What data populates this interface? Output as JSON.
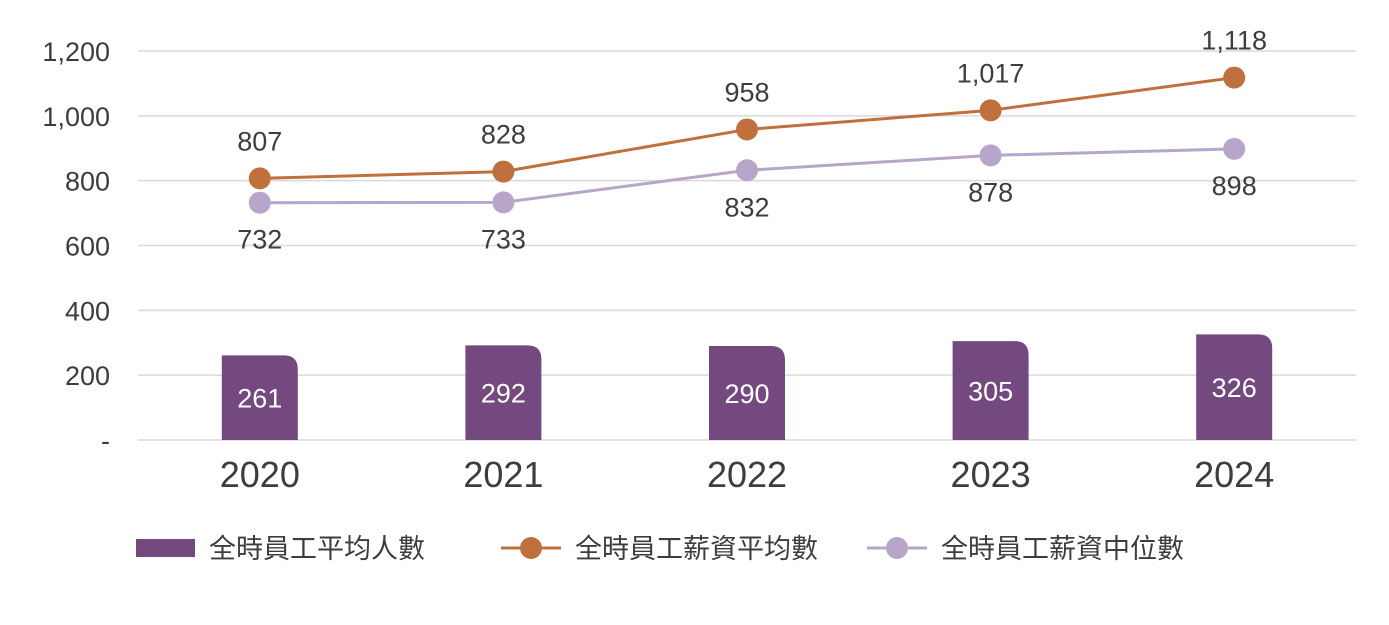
{
  "chart_data": {
    "type": "bar+line",
    "categories": [
      "2020",
      "2021",
      "2022",
      "2023",
      "2024"
    ],
    "ylim": [
      0,
      1200
    ],
    "yticks": [
      {
        "value": 0,
        "label": "-"
      },
      {
        "value": 200,
        "label": "200"
      },
      {
        "value": 400,
        "label": "400"
      },
      {
        "value": 600,
        "label": "600"
      },
      {
        "value": 800,
        "label": "800"
      },
      {
        "value": 1000,
        "label": "1,000"
      },
      {
        "value": 1200,
        "label": "1,200"
      }
    ],
    "grid": true,
    "legend_position": "bottom",
    "series": [
      {
        "name": "全時員工平均人數",
        "kind": "bar",
        "color": "#73497f",
        "values": [
          261,
          292,
          290,
          305,
          326
        ],
        "labels": [
          "261",
          "292",
          "290",
          "305",
          "326"
        ]
      },
      {
        "name": "全時員工薪資平均數",
        "kind": "line",
        "color": "#c0703d",
        "values": [
          807,
          828,
          958,
          1017,
          1118
        ],
        "labels": [
          "807",
          "828",
          "958",
          "1,017",
          "1,118"
        ]
      },
      {
        "name": "全時員工薪資中位數",
        "kind": "line",
        "color": "#b7a6c9",
        "values": [
          732,
          733,
          832,
          878,
          898
        ],
        "labels": [
          "732",
          "733",
          "832",
          "878",
          "898"
        ]
      }
    ]
  }
}
